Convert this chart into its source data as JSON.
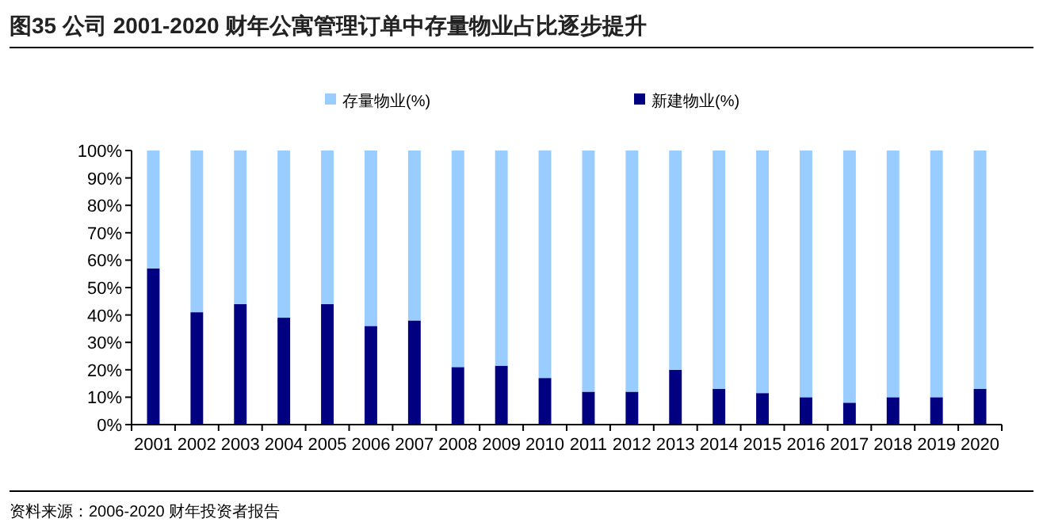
{
  "chart_data": {
    "type": "bar",
    "stacked": true,
    "title": "图35 公司 2001-2020 财年公寓管理订单中存量物业占比逐步提升",
    "categories": [
      "2001",
      "2002",
      "2003",
      "2004",
      "2005",
      "2006",
      "2007",
      "2008",
      "2009",
      "2010",
      "2011",
      "2012",
      "2013",
      "2014",
      "2015",
      "2016",
      "2017",
      "2018",
      "2019",
      "2020"
    ],
    "series": [
      {
        "name": "新建物业(%)",
        "color": "#000080",
        "values": [
          57,
          41,
          44,
          39,
          44,
          36,
          38,
          21,
          21.5,
          17,
          12,
          12,
          20,
          13,
          11.5,
          10,
          8,
          10,
          10,
          13
        ]
      },
      {
        "name": "存量物业(%)",
        "color": "#99ccff",
        "values": [
          43,
          59,
          56,
          61,
          56,
          64,
          62,
          79,
          78.5,
          83,
          88,
          88,
          80,
          87,
          88.5,
          90,
          92,
          90,
          90,
          87
        ]
      }
    ],
    "ylim": [
      0,
      100
    ],
    "yticks": [
      {
        "value": 0,
        "label": "0%"
      },
      {
        "value": 10,
        "label": "10%"
      },
      {
        "value": 20,
        "label": "20%"
      },
      {
        "value": 30,
        "label": "30%"
      },
      {
        "value": 40,
        "label": "40%"
      },
      {
        "value": 50,
        "label": "50%"
      },
      {
        "value": 60,
        "label": "60%"
      },
      {
        "value": 70,
        "label": "70%"
      },
      {
        "value": 80,
        "label": "80%"
      },
      {
        "value": 90,
        "label": "90%"
      },
      {
        "value": 100,
        "label": "100%"
      }
    ],
    "grid": false,
    "legend": "top",
    "annotations": [
      "资料来源：2006-2020 财年投资者报告"
    ]
  }
}
